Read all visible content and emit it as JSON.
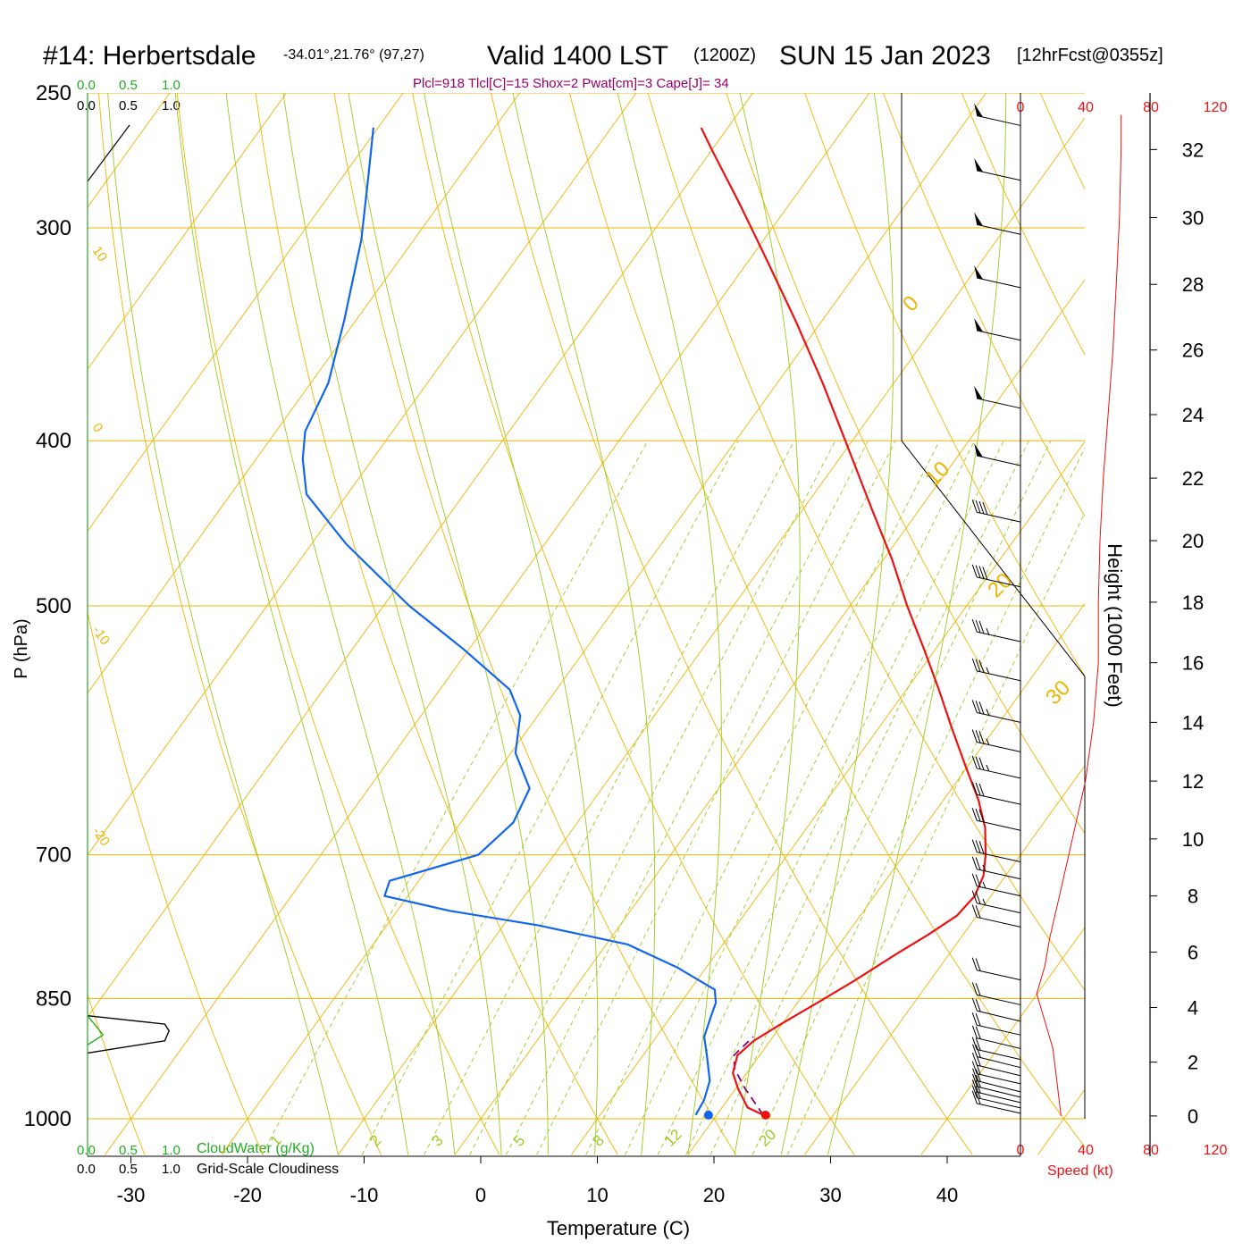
{
  "header": {
    "station": "#14: Herbertsdale",
    "coords": "-34.01°,21.76° (97,27)",
    "valid": "Valid 1400 LST",
    "zulu": "(1200Z)",
    "date": "SUN 15 Jan 2023",
    "fcst": "[12hrFcst@0355z]",
    "params": "Plcl=918 Tlcl[C]=15 Shox=2 Pwat[cm]=3 Cape[J]= 34"
  },
  "colors": {
    "temperature": "#ee1111",
    "dewpoint": "#1166ee",
    "parcel": "#880077",
    "isobar": "#f0b400",
    "dry_adiabat": "#f0b400",
    "moist_adiabat": "#99cc22",
    "mixing_ratio": "#99cc22",
    "cloud_water": "#22aa22",
    "params_text": "#990066",
    "speed": "#ee1111"
  },
  "chart_data": {
    "type": "skew-t log-p sounding",
    "xlabel": "Temperature (C)",
    "ylabel": "P (hPa)",
    "right_axis_label": "Height (1000 Feet)",
    "speed_label": "Speed (kt)",
    "x_ticks": [
      "-30",
      "-20",
      "-10",
      "0",
      "10",
      "20",
      "30",
      "40"
    ],
    "p_ticks": [
      "250",
      "300",
      "400",
      "500",
      "700",
      "850",
      "1000"
    ],
    "p_tick_values": [
      250,
      300,
      400,
      500,
      700,
      850,
      1000
    ],
    "ylim": [
      250,
      1000
    ],
    "height_ticks": [
      "32",
      "30",
      "28",
      "26",
      "24",
      "22",
      "20",
      "18",
      "16",
      "14",
      "12",
      "10",
      "8",
      "6",
      "4",
      "2",
      "0"
    ],
    "speed_ticks": [
      "0",
      "40",
      "80",
      "120"
    ],
    "cloud_scale_top": [
      "0.0",
      "0.5",
      "1.0"
    ],
    "cloud_scale_bottom": [
      "0.0",
      "0.5",
      "1.0"
    ],
    "cloudwater_label": "CloudWater (g/Kg)",
    "cloudiness_label": "Grid-Scale Cloudiness",
    "dry_adiabat_labels": [
      "10",
      "0",
      "-10",
      "-20"
    ],
    "moist_adiabat_labels": [
      "0",
      "10",
      "20",
      "30"
    ],
    "mixing_ratio_labels": [
      "1",
      "2",
      "3",
      "5",
      "8",
      "12",
      "20"
    ],
    "temperature_profile": [
      {
        "p": 995,
        "t": 24.0
      },
      {
        "p": 985,
        "t": 22.2
      },
      {
        "p": 960,
        "t": 20.2
      },
      {
        "p": 940,
        "t": 18.8
      },
      {
        "p": 918,
        "t": 18.1
      },
      {
        "p": 900,
        "t": 18.6
      },
      {
        "p": 880,
        "t": 19.9
      },
      {
        "p": 855,
        "t": 21.7
      },
      {
        "p": 830,
        "t": 23.5
      },
      {
        "p": 800,
        "t": 25.5
      },
      {
        "p": 780,
        "t": 27.0
      },
      {
        "p": 760,
        "t": 28.3
      },
      {
        "p": 740,
        "t": 28.6
      },
      {
        "p": 720,
        "t": 28.1
      },
      {
        "p": 700,
        "t": 27.0
      },
      {
        "p": 675,
        "t": 25.3
      },
      {
        "p": 650,
        "t": 23.0
      },
      {
        "p": 620,
        "t": 19.7
      },
      {
        "p": 590,
        "t": 16.3
      },
      {
        "p": 560,
        "t": 12.8
      },
      {
        "p": 530,
        "t": 9.0
      },
      {
        "p": 500,
        "t": 4.9
      },
      {
        "p": 470,
        "t": 0.8
      },
      {
        "p": 440,
        "t": -3.9
      },
      {
        "p": 400,
        "t": -10.6
      },
      {
        "p": 370,
        "t": -16.1
      },
      {
        "p": 340,
        "t": -22.3
      },
      {
        "p": 310,
        "t": -29.3
      },
      {
        "p": 290,
        "t": -34.4
      },
      {
        "p": 270,
        "t": -40.0
      },
      {
        "p": 262,
        "t": -42.3
      }
    ],
    "dewpoint_profile": [
      {
        "p": 995,
        "t": 18.2
      },
      {
        "p": 975,
        "t": 18.0
      },
      {
        "p": 950,
        "t": 17.3
      },
      {
        "p": 920,
        "t": 15.6
      },
      {
        "p": 895,
        "t": 14.1
      },
      {
        "p": 870,
        "t": 13.4
      },
      {
        "p": 855,
        "t": 13.0
      },
      {
        "p": 840,
        "t": 12.1
      },
      {
        "p": 815,
        "t": 7.5
      },
      {
        "p": 790,
        "t": 1.8
      },
      {
        "p": 770,
        "t": -7.0
      },
      {
        "p": 755,
        "t": -15.5
      },
      {
        "p": 740,
        "t": -22.0
      },
      {
        "p": 725,
        "t": -22.5
      },
      {
        "p": 700,
        "t": -16.5
      },
      {
        "p": 670,
        "t": -15.5
      },
      {
        "p": 640,
        "t": -16.2
      },
      {
        "p": 610,
        "t": -19.6
      },
      {
        "p": 580,
        "t": -21.5
      },
      {
        "p": 560,
        "t": -24.0
      },
      {
        "p": 530,
        "t": -30.5
      },
      {
        "p": 500,
        "t": -37.8
      },
      {
        "p": 460,
        "t": -47.0
      },
      {
        "p": 430,
        "t": -53.5
      },
      {
        "p": 410,
        "t": -56.0
      },
      {
        "p": 395,
        "t": -57.5
      },
      {
        "p": 370,
        "t": -58.5
      },
      {
        "p": 340,
        "t": -61.0
      },
      {
        "p": 305,
        "t": -64.5
      },
      {
        "p": 280,
        "t": -67.8
      },
      {
        "p": 262,
        "t": -70.4
      }
    ],
    "parcel_profile": [
      {
        "p": 995,
        "t": 24.0
      },
      {
        "p": 960,
        "t": 20.8
      },
      {
        "p": 935,
        "t": 18.7
      },
      {
        "p": 918,
        "t": 17.8
      },
      {
        "p": 895,
        "t": 18.3
      }
    ],
    "surface": {
      "t": 24.2,
      "td": 19.3
    },
    "winds": [
      {
        "h": 0.1,
        "spd": 20
      },
      {
        "h": 0.3,
        "spd": 20
      },
      {
        "h": 0.5,
        "spd": 20
      },
      {
        "h": 0.7,
        "spd": 20
      },
      {
        "h": 0.9,
        "spd": 20
      },
      {
        "h": 1.2,
        "spd": 20
      },
      {
        "h": 1.5,
        "spd": 20
      },
      {
        "h": 1.8,
        "spd": 20
      },
      {
        "h": 2.1,
        "spd": 20
      },
      {
        "h": 2.5,
        "spd": 20
      },
      {
        "h": 3.0,
        "spd": 20
      },
      {
        "h": 3.5,
        "spd": 20
      },
      {
        "h": 4.1,
        "spd": 20
      },
      {
        "h": 5.0,
        "spd": 20
      },
      {
        "h": 6.9,
        "spd": 20
      },
      {
        "h": 7.4,
        "spd": 25
      },
      {
        "h": 8.0,
        "spd": 25
      },
      {
        "h": 8.6,
        "spd": 25
      },
      {
        "h": 9.2,
        "spd": 30
      },
      {
        "h": 10.3,
        "spd": 30
      },
      {
        "h": 11.2,
        "spd": 30
      },
      {
        "h": 12.1,
        "spd": 35
      },
      {
        "h": 13.0,
        "spd": 35
      },
      {
        "h": 14.0,
        "spd": 35
      },
      {
        "h": 15.4,
        "spd": 35
      },
      {
        "h": 16.7,
        "spd": 35
      },
      {
        "h": 18.5,
        "spd": 40
      },
      {
        "h": 20.6,
        "spd": 40
      },
      {
        "h": 22.4,
        "spd": 50
      },
      {
        "h": 24.2,
        "spd": 50
      },
      {
        "h": 26.3,
        "spd": 50
      },
      {
        "h": 27.9,
        "spd": 50
      },
      {
        "h": 29.5,
        "spd": 50
      },
      {
        "h": 31.1,
        "spd": 50
      },
      {
        "h": 32.7,
        "spd": 50
      }
    ],
    "speed_profile": [
      {
        "h": 0.0,
        "spd": 25
      },
      {
        "h": 0.5,
        "spd": 24
      },
      {
        "h": 1.5,
        "spd": 22
      },
      {
        "h": 2.5,
        "spd": 20
      },
      {
        "h": 3.5,
        "spd": 15
      },
      {
        "h": 4.5,
        "spd": 10
      },
      {
        "h": 5.5,
        "spd": 15
      },
      {
        "h": 6.5,
        "spd": 18
      },
      {
        "h": 8.0,
        "spd": 24
      },
      {
        "h": 10.0,
        "spd": 32
      },
      {
        "h": 12.0,
        "spd": 40
      },
      {
        "h": 14.0,
        "spd": 45
      },
      {
        "h": 16.0,
        "spd": 48
      },
      {
        "h": 18.0,
        "spd": 48
      },
      {
        "h": 20.0,
        "spd": 49
      },
      {
        "h": 22.0,
        "spd": 51
      },
      {
        "h": 24.0,
        "spd": 54
      },
      {
        "h": 26.0,
        "spd": 57
      },
      {
        "h": 28.0,
        "spd": 59
      },
      {
        "h": 30.0,
        "spd": 61
      },
      {
        "h": 32.0,
        "spd": 62
      },
      {
        "h": 33.0,
        "spd": 62
      }
    ],
    "cloudiness_profile": [
      {
        "p": 870,
        "v": 0.0
      },
      {
        "p": 880,
        "v": 0.9
      },
      {
        "p": 888,
        "v": 0.95
      },
      {
        "p": 900,
        "v": 0.9
      },
      {
        "p": 915,
        "v": 0.0
      }
    ],
    "cloudwater_profile": [
      {
        "p": 870,
        "v": 0.0
      },
      {
        "p": 885,
        "v": 0.12
      },
      {
        "p": 893,
        "v": 0.18
      },
      {
        "p": 905,
        "v": 0.0
      }
    ]
  }
}
